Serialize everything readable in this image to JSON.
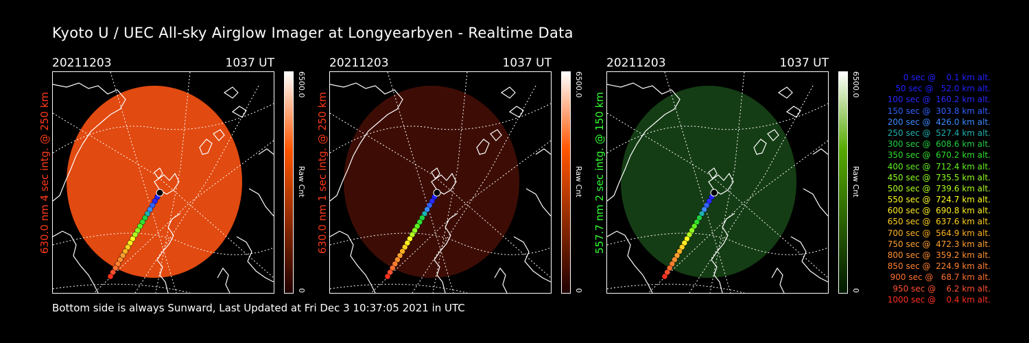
{
  "title": "Kyoto U / UEC All-sky Airglow Imager at Longyearbyen - Realtime Data",
  "footer": "Bottom side is always Sunward, Last Updated at Fri Dec  3 10:37:05 2021 in UTC",
  "panels": [
    {
      "date": "20211203",
      "time": "1037 UT",
      "side_label": "630.0 nm 4 sec intg. @ 250 km",
      "label_color": "#ff3a1a",
      "colorbar_max": "6500.0",
      "colorbar_min": "0",
      "colorbar_unit": "Raw Cnt",
      "image_color": "#e14a10",
      "bar_top_color": "#ffffff",
      "bar_mid_color": "#ff5500",
      "bar_bottom_color": "#200000"
    },
    {
      "date": "20211203",
      "time": "1037 UT",
      "side_label": "630.0 nm 1 sec intg. @ 250 km",
      "label_color": "#ff3a1a",
      "colorbar_max": "6500.0",
      "colorbar_min": "0",
      "colorbar_unit": "Raw Cnt",
      "image_color": "#3d0d05",
      "bar_top_color": "#ffffff",
      "bar_mid_color": "#ff5500",
      "bar_bottom_color": "#200000"
    },
    {
      "date": "20211203",
      "time": "1037 UT",
      "side_label": "557.7 nm 2 sec intg. @ 150 km",
      "label_color": "#33ff33",
      "colorbar_max": "6500.0",
      "colorbar_min": "0",
      "colorbar_unit": "Raw Cnt",
      "image_color": "#153d15",
      "bar_top_color": "#ffffff",
      "bar_mid_color": "#55aa00",
      "bar_bottom_color": "#001800"
    }
  ],
  "legend": [
    {
      "text": "0 sec @    0.1 km alt.",
      "color": "#2020ff"
    },
    {
      "text": "50 sec @   52.0 km alt.",
      "color": "#2020ff"
    },
    {
      "text": "100 sec @  160.2 km alt.",
      "color": "#2a2aff"
    },
    {
      "text": "150 sec @  303.8 km alt.",
      "color": "#3060ff"
    },
    {
      "text": "200 sec @  426.0 km alt.",
      "color": "#3a8aff"
    },
    {
      "text": "250 sec @  527.4 km alt.",
      "color": "#20b0b0"
    },
    {
      "text": "300 sec @  608.6 km alt.",
      "color": "#20d040"
    },
    {
      "text": "350 sec @  670.2 km alt.",
      "color": "#30e030"
    },
    {
      "text": "400 sec @  712.4 km alt.",
      "color": "#60f020"
    },
    {
      "text": "450 sec @  735.5 km alt.",
      "color": "#90ff20"
    },
    {
      "text": "500 sec @  739.6 km alt.",
      "color": "#b0ff20"
    },
    {
      "text": "550 sec @  724.7 km alt.",
      "color": "#ffff20"
    },
    {
      "text": "600 sec @  690.8 km alt.",
      "color": "#ffee20"
    },
    {
      "text": "650 sec @  637.6 km alt.",
      "color": "#ffd020"
    },
    {
      "text": "700 sec @  564.9 km alt.",
      "color": "#ffb020"
    },
    {
      "text": "750 sec @  472.3 km alt.",
      "color": "#ffa030"
    },
    {
      "text": "800 sec @  359.2 km alt.",
      "color": "#ff9030"
    },
    {
      "text": "850 sec @  224.9 km alt.",
      "color": "#ff8030"
    },
    {
      "text": "900 sec @   68.7 km alt.",
      "color": "#ff7030"
    },
    {
      "text": "950 sec @    6.2 km alt.",
      "color": "#ff5030"
    },
    {
      "text": "1000 sec @    0.4 km alt.",
      "color": "#ff3020"
    }
  ]
}
